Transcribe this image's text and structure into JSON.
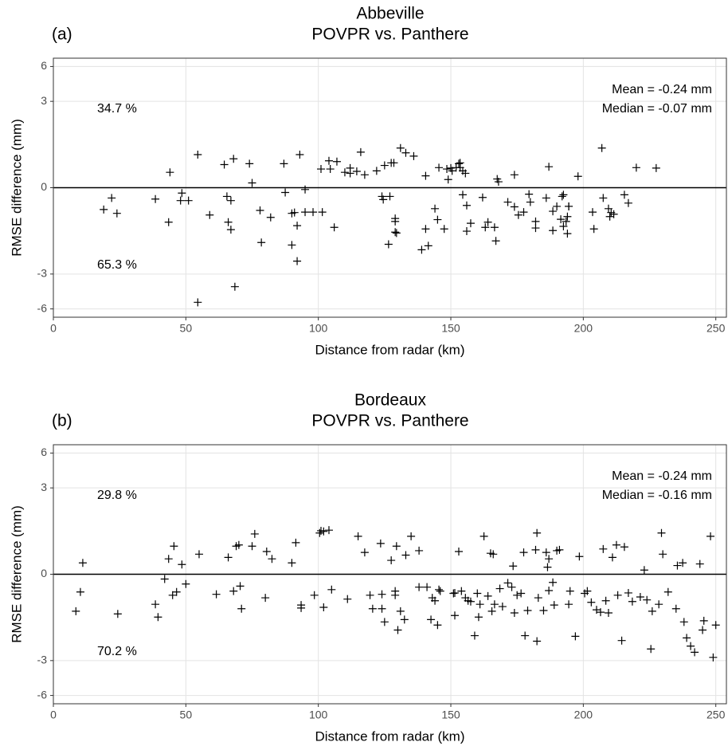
{
  "chart_data": [
    {
      "type": "scatter",
      "title": "Abbeville",
      "subtitle": "POVPR vs. Panthere",
      "panel_label": "(a)",
      "xlabel": "Distance from radar (km)",
      "ylabel": "RMSE difference (mm)",
      "stats": [
        "Mean = -0.24 mm",
        "Median = -0.07 mm"
      ],
      "percent_above": "34.7 %",
      "percent_below": "65.3 %",
      "xlim": [
        0,
        254
      ],
      "ylim": [
        -7,
        7
      ],
      "xticks": [
        0,
        50,
        100,
        150,
        200,
        250
      ],
      "yticks": [
        -6,
        -3,
        0,
        3,
        6
      ],
      "yscale": "pseudo-log",
      "grid": true,
      "hline": 0,
      "color": "#000000",
      "x": [
        19,
        22,
        24,
        38.5,
        44,
        43.5,
        48.5,
        48,
        51,
        54.5,
        54.5,
        59,
        64.5,
        65.5,
        67,
        66,
        67,
        68,
        68.5,
        74,
        75,
        78,
        78.5,
        82,
        87,
        87.5,
        90,
        90,
        91,
        93,
        92,
        92,
        95,
        95,
        98,
        101,
        101.5,
        104,
        104.5,
        106,
        107,
        110,
        112,
        112,
        114.5,
        116,
        117.5,
        122,
        124,
        124.5,
        125,
        126.5,
        127.5,
        127,
        128.5,
        129,
        129,
        129,
        129.5,
        131,
        133,
        136,
        139,
        140.5,
        141.5,
        140.5,
        144,
        145,
        145.5,
        147.5,
        148.5,
        149,
        150,
        150.5,
        152,
        153,
        153.5,
        153.5,
        154.5,
        154.5,
        155.5,
        156,
        156,
        157.5,
        162,
        163,
        164,
        166.5,
        167,
        168,
        167.5,
        171.5,
        174,
        174,
        175.5,
        177.5,
        179.5,
        180,
        182,
        182,
        186,
        187,
        188.5,
        188.5,
        190,
        191.5,
        192,
        192.5,
        192.5,
        193.5,
        194,
        194,
        194.5,
        194.5,
        198,
        203.5,
        204,
        207.5,
        207,
        209.5,
        210,
        210.5,
        211.5,
        215.5,
        217,
        220,
        227.5
      ],
      "values": [
        -0.42,
        -0.18,
        -0.51,
        -0.2,
        0.28,
        -0.74,
        -0.09,
        -0.23,
        -0.23,
        0.7,
        -5.3,
        -0.55,
        0.45,
        -0.15,
        -0.23,
        -0.74,
        -0.96,
        0.59,
        -3.9,
        0.47,
        0.08,
        -0.44,
        -1.41,
        -0.61,
        0.47,
        -0.08,
        -0.51,
        -1.51,
        -0.49,
        0.7,
        -0.84,
        -2.25,
        -0.03,
        -0.48,
        -0.48,
        0.35,
        -0.48,
        0.54,
        0.35,
        -0.89,
        0.52,
        0.28,
        0.37,
        0.26,
        0.3,
        0.77,
        0.23,
        0.31,
        -0.15,
        -0.21,
        0.43,
        -1.48,
        0.49,
        -0.15,
        0.49,
        -1.04,
        -0.64,
        -0.72,
        -1.07,
        0.89,
        0.75,
        0.66,
        -1.71,
        0.21,
        -1.54,
        -0.94,
        -0.4,
        -0.67,
        0.38,
        -0.94,
        0.35,
        0.14,
        0.37,
        0.31,
        0.38,
        0.47,
        0.49,
        0.38,
        -0.12,
        0.31,
        0.26,
        -1.01,
        -0.33,
        -0.77,
        -0.17,
        -0.89,
        -0.74,
        -0.89,
        -1.35,
        0.1,
        0.15,
        -0.26,
        -0.36,
        0.23,
        -0.55,
        -0.48,
        -0.11,
        -0.26,
        -0.72,
        -0.91,
        -0.18,
        0.4,
        -0.46,
        -0.99,
        -0.35,
        -0.66,
        -0.15,
        -0.12,
        -0.86,
        -0.72,
        -0.59,
        -1.09,
        -0.35,
        -0.35,
        0.2,
        -0.48,
        -0.94,
        -0.18,
        0.89,
        -0.4,
        -0.59,
        -0.49,
        -0.53,
        -0.12,
        -0.28,
        0.38,
        0.37
      ]
    },
    {
      "type": "scatter",
      "title": "Bordeaux",
      "subtitle": "POVPR vs. Panthere",
      "panel_label": "(b)",
      "xlabel": "Distance from radar (km)",
      "ylabel": "RMSE difference (mm)",
      "stats": [
        "Mean = -0.24 mm",
        "Median = -0.16 mm"
      ],
      "percent_above": "29.8 %",
      "percent_below": "70.2 %",
      "xlim": [
        0,
        254
      ],
      "ylim": [
        -7,
        7
      ],
      "xticks": [
        0,
        50,
        100,
        150,
        200,
        250
      ],
      "yticks": [
        -6,
        -3,
        0,
        3,
        6
      ],
      "yscale": "pseudo-log",
      "grid": true,
      "hline": 0,
      "color": "#000000",
      "x": [
        8.5,
        10.2,
        11.1,
        24.3,
        38.5,
        39.5,
        42,
        43.5,
        45.5,
        45,
        46.5,
        48.5,
        50,
        55,
        61.5,
        66,
        68,
        69,
        70,
        70.5,
        71,
        75,
        76,
        80,
        80.5,
        82.5,
        90,
        91.5,
        93.5,
        93.5,
        98.5,
        100.5,
        101,
        102,
        102,
        104,
        105,
        111,
        115,
        117.5,
        119.5,
        120.5,
        123.5,
        124,
        124,
        125,
        127.5,
        129,
        129,
        129.5,
        130,
        131,
        132.5,
        133,
        135,
        138,
        138,
        141,
        142.5,
        143,
        144,
        145,
        145.5,
        146,
        151,
        151.5,
        151.5,
        153,
        154,
        155.5,
        156.5,
        157.5,
        159,
        160,
        160.5,
        161,
        162.5,
        164,
        165,
        165.5,
        166,
        166.5,
        168.5,
        169.5,
        171.5,
        173,
        173.5,
        174,
        175,
        176.5,
        177.5,
        178,
        179,
        182,
        182.5,
        183,
        182.5,
        185,
        186,
        187,
        186.5,
        187,
        188.5,
        189,
        190,
        191,
        194.5,
        195,
        197,
        198.5,
        200.5,
        201.5,
        203,
        205,
        206.5,
        207.5,
        208.5,
        209.5,
        211,
        212.5,
        213,
        214.5,
        215.5,
        217,
        218.5,
        221.5,
        223,
        224,
        225.5,
        226,
        228.5,
        229.5,
        230,
        232,
        235,
        235.5,
        237.5,
        238,
        239,
        240.5,
        242,
        244,
        245,
        245.5,
        248,
        249,
        250
      ],
      "values": [
        -0.81,
        -0.33,
        0.2,
        -0.89,
        -0.62,
        -0.99,
        -0.08,
        0.28,
        0.57,
        -0.4,
        -0.33,
        0.17,
        -0.17,
        0.38,
        -0.38,
        0.31,
        -0.31,
        0.57,
        0.6,
        -0.21,
        -0.74,
        0.57,
        0.91,
        -0.46,
        0.44,
        0.28,
        0.2,
        0.66,
        -0.64,
        -0.72,
        -0.4,
        0.94,
        1.01,
        0.99,
        -0.7,
        1.03,
        -0.28,
        -0.49,
        0.84,
        0.42,
        -0.4,
        -0.74,
        0.64,
        -0.38,
        -0.74,
        -1.15,
        0.25,
        -0.4,
        -0.31,
        0.57,
        -1.45,
        -0.81,
        -1.07,
        0.36,
        0.84,
        -0.23,
        0.46,
        -0.23,
        -1.07,
        -0.46,
        -0.53,
        -1.26,
        -0.28,
        -0.31,
        -0.36,
        -0.35,
        -0.94,
        0.44,
        -0.31,
        -0.46,
        -0.53,
        -0.55,
        -1.68,
        -0.36,
        -0.99,
        -0.62,
        0.84,
        -0.42,
        0.4,
        -0.81,
        0.38,
        -0.62,
        -0.26,
        -0.68,
        -0.15,
        -0.23,
        0.14,
        -0.86,
        -0.4,
        -0.36,
        0.42,
        -1.68,
        -0.79,
        0.48,
        0.94,
        -0.46,
        -1.93,
        -0.79,
        0.42,
        0.28,
        0.12,
        -0.3,
        -0.14,
        -0.64,
        0.46,
        0.48,
        -0.62,
        -0.31,
        -1.71,
        0.33,
        -0.36,
        -0.31,
        -0.57,
        -0.77,
        -0.84,
        0.5,
        -0.53,
        -0.86,
        0.31,
        0.6,
        -0.4,
        -1.9,
        0.55,
        -0.35,
        -0.55,
        -0.44,
        0.07,
        -0.51,
        -2.32,
        -0.81,
        -0.62,
        0.94,
        0.38,
        -0.33,
        -0.74,
        0.15,
        0.2,
        -1.15,
        -1.78,
        -2.17,
        -2.5,
        0.18,
        -1.45,
        -1.11,
        0.84,
        -2.8,
        -1.26
      ]
    }
  ]
}
